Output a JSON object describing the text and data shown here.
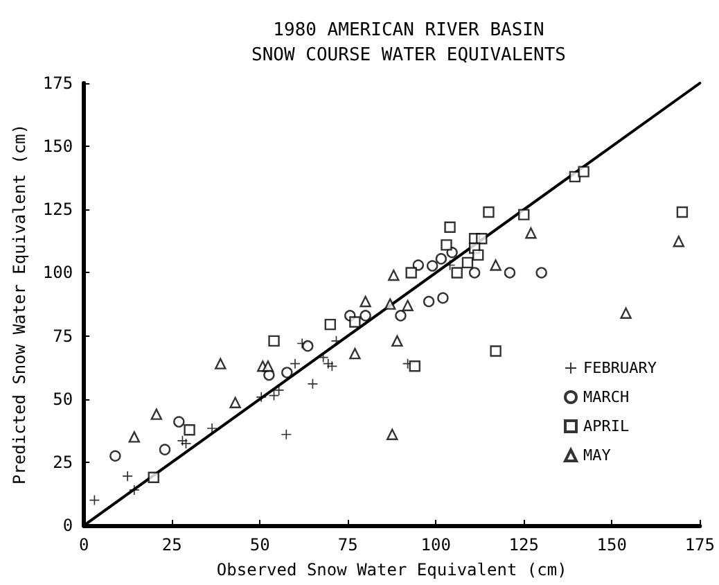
{
  "chart_data": {
    "type": "scatter",
    "title": "1980 AMERICAN RIVER BASIN\nSNOW COURSE WATER EQUIVALENTS",
    "xlabel": "Observed Snow Water Equivalent (cm)",
    "ylabel": "Predicted Snow Water Equivalent (cm)",
    "xlim": [
      0,
      175
    ],
    "xticks": [
      0,
      25,
      50,
      75,
      100,
      125,
      150,
      175
    ],
    "ylim": [
      0,
      175
    ],
    "yticks": [
      0,
      25,
      50,
      75,
      100,
      125,
      150,
      175
    ],
    "grid": false,
    "legend": "right",
    "series": [
      {
        "name": "FEBRUARY",
        "color": "#000000",
        "marker": "cross",
        "x": [
          3,
          12.4,
          14.3,
          28,
          29,
          36.4,
          50.4,
          54,
          55.4,
          57.5,
          60,
          62,
          65,
          68,
          69.4,
          70.5,
          71.7,
          92,
          104
        ],
        "values": [
          10,
          19.5,
          14,
          33.5,
          32.4,
          38.4,
          50.8,
          51.4,
          53.5,
          36,
          64,
          72,
          56,
          66.5,
          64,
          63,
          73,
          64,
          103
        ]
      },
      {
        "name": "MARCH",
        "color": "#000000",
        "marker": "circle",
        "x": [
          8.9,
          23,
          27,
          52.6,
          57.7,
          63.6,
          75.6,
          80,
          90,
          98,
          102,
          95,
          99,
          101.5,
          104.6,
          111,
          121,
          130
        ],
        "values": [
          27.5,
          30,
          41,
          59.5,
          60.5,
          71,
          83,
          83,
          83,
          88.6,
          90,
          103,
          102.7,
          105.5,
          108,
          100,
          100,
          100
        ]
      },
      {
        "name": "APRIL",
        "color": "#000000",
        "marker": "square",
        "x": [
          19.8,
          30,
          54,
          70,
          77,
          93,
          103,
          104,
          111,
          113,
          111,
          112,
          109,
          106,
          115,
          125,
          170,
          117,
          94,
          139.5,
          142
        ],
        "values": [
          19,
          37.8,
          73,
          79.5,
          80.5,
          100,
          111,
          118,
          113.5,
          113.5,
          109.7,
          107,
          104,
          100,
          124,
          123,
          124,
          69,
          63,
          138,
          140
        ]
      },
      {
        "name": "MAY",
        "color": "#000000",
        "marker": "triangle",
        "x": [
          14.3,
          20.6,
          38.8,
          43,
          50.8,
          52.3,
          77,
          87,
          92,
          80,
          88,
          117,
          127,
          89,
          154,
          169,
          87.6
        ],
        "values": [
          35,
          44,
          64,
          48.6,
          63,
          63,
          68,
          87.6,
          87,
          88.6,
          99,
          103,
          115.7,
          73,
          84,
          112.4,
          36
        ]
      },
      {
        "type": "line",
        "color": "#000000",
        "marker": "none",
        "line_style": "solid",
        "x": [
          0,
          175
        ],
        "values": [
          0,
          175
        ]
      }
    ]
  }
}
